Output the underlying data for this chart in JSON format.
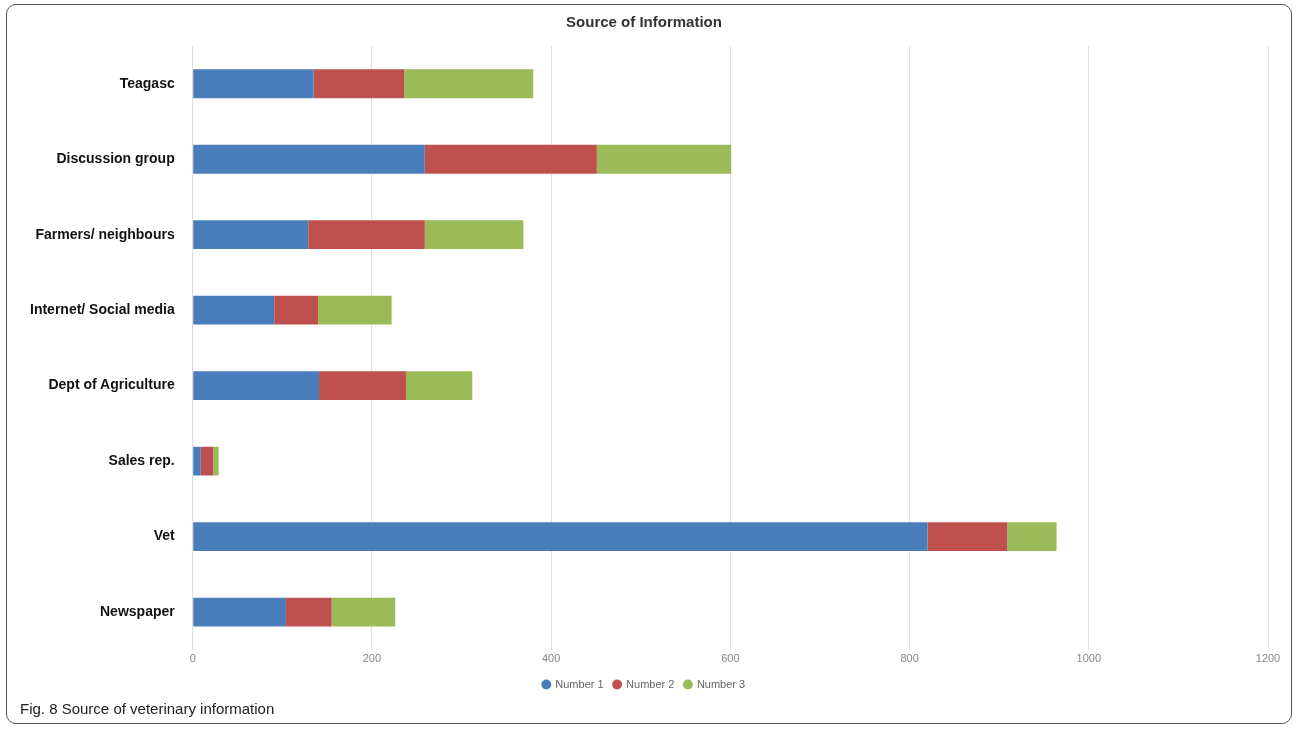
{
  "chart_data": {
    "type": "bar",
    "orientation": "horizontal",
    "stacked": true,
    "title": "Source of Information",
    "categories": [
      "Teagasc",
      "Discussion group",
      "Farmers/ neighbours",
      "Internet/ Social media",
      "Dept of Agriculture",
      "Sales rep.",
      "Vet",
      "Newspaper"
    ],
    "series": [
      {
        "name": "Number 1",
        "color": "#4a7ebb",
        "values": [
          135,
          259,
          129,
          91,
          141,
          9,
          820,
          104
        ]
      },
      {
        "name": "Number 2",
        "color": "#c0504d",
        "values": [
          101,
          192,
          130,
          49,
          97,
          14,
          89,
          51
        ]
      },
      {
        "name": "Number 3",
        "color": "#9bbb59",
        "values": [
          144,
          150,
          110,
          82,
          74,
          6,
          55,
          71
        ]
      }
    ],
    "xlim": [
      0,
      1200
    ],
    "xticks": [
      0,
      200,
      400,
      600,
      800,
      1000,
      1200
    ],
    "grid": "x",
    "legend": "bottom",
    "marker": "circle",
    "annotations": [
      "Fig. 8 Source of veterinary information"
    ]
  }
}
